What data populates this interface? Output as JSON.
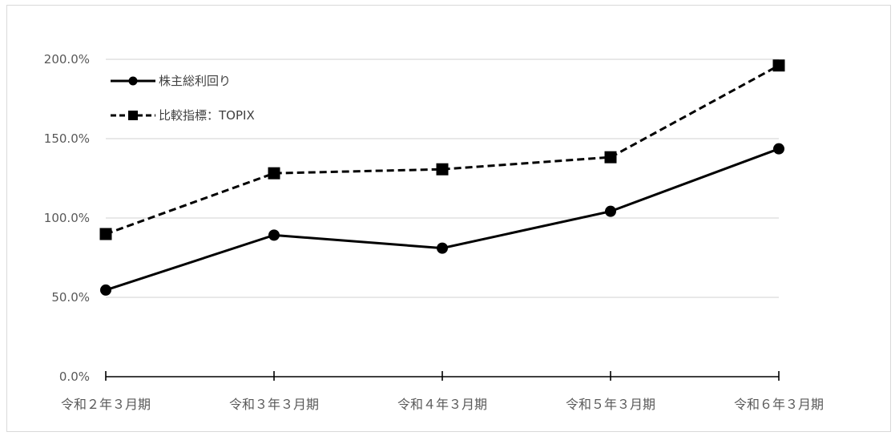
{
  "chart_data": {
    "type": "line",
    "title": "",
    "xlabel": "",
    "ylabel": "",
    "categories": [
      "令和２年３月期",
      "令和３年３月期",
      "令和４年３月期",
      "令和５年３月期",
      "令和６年３月期"
    ],
    "ylim": [
      0,
      200
    ],
    "yticks": [
      0,
      50,
      100,
      150,
      200
    ],
    "ytick_labels": [
      "0.0%",
      "50.0%",
      "100.0%",
      "150.0%",
      "200.0%"
    ],
    "grid": true,
    "legend_position": "top-left",
    "series": [
      {
        "name": "株主総利回り",
        "values": [
          54.6,
          89.2,
          81.0,
          104.2,
          143.6
        ],
        "line_style": "solid",
        "marker": "circle",
        "color": "#000000"
      },
      {
        "name": "比較指標：TOPIX",
        "values": [
          89.9,
          128.2,
          130.7,
          138.3,
          196.1
        ],
        "line_style": "dashed",
        "marker": "square",
        "color": "#000000"
      }
    ]
  }
}
